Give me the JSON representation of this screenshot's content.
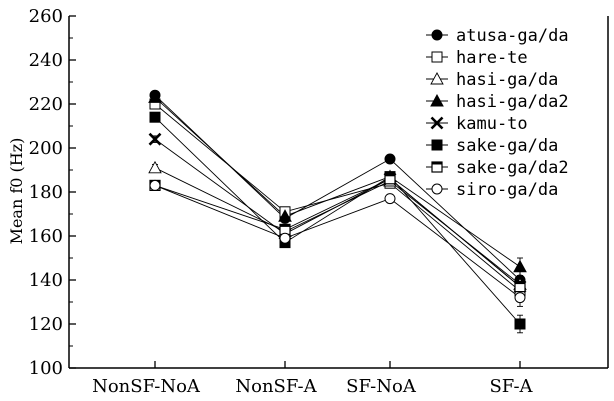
{
  "chart_data": {
    "type": "line",
    "title": "",
    "xlabel": "",
    "ylabel": "Mean f0 (Hz)",
    "ylim": [
      100,
      260
    ],
    "yticks": [
      100,
      120,
      140,
      160,
      180,
      200,
      220,
      240,
      260
    ],
    "categories": [
      "NonSF-NoA",
      "NonSF-A",
      "SF-NoA",
      "SF-A"
    ],
    "grid": false,
    "legend_position": "top-right",
    "series": [
      {
        "name": "atusa-ga/da",
        "marker": "circle-filled",
        "values": [
          224,
          168,
          195,
          140
        ]
      },
      {
        "name": "hare-te",
        "marker": "square-open",
        "values": [
          220,
          171,
          184,
          135
        ]
      },
      {
        "name": "hasi-ga/da",
        "marker": "triangle-open",
        "values": [
          191,
          162,
          185,
          138
        ]
      },
      {
        "name": "hasi-ga/da2",
        "marker": "triangle-filled",
        "values": [
          223,
          169,
          187,
          146
        ]
      },
      {
        "name": "kamu-to",
        "marker": "x",
        "values": [
          204,
          161,
          186,
          137
        ]
      },
      {
        "name": "sake-ga/da",
        "marker": "square-filled",
        "values": [
          214,
          157,
          187,
          120
        ]
      },
      {
        "name": "sake-ga/da2",
        "marker": "square-open-dot",
        "values": [
          183,
          163,
          186,
          137
        ]
      },
      {
        "name": "siro-ga/da",
        "marker": "circle-open",
        "values": [
          183,
          159,
          177,
          132
        ]
      }
    ]
  }
}
